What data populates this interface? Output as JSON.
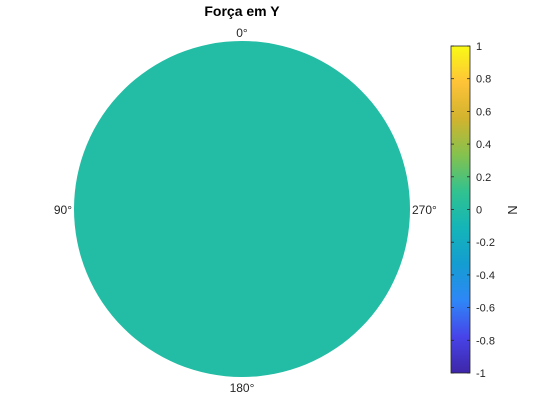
{
  "chart_data": {
    "type": "heatmap",
    "subtype": "polar-disk",
    "title": "Força em Y",
    "angle_labels": {
      "top": "0°",
      "left": "90°",
      "bottom": "180°",
      "right": "270°"
    },
    "value": 0,
    "colorbar": {
      "label": "N",
      "min": -1,
      "max": 1,
      "ticks": [
        1,
        0.8,
        0.6,
        0.4,
        0.2,
        0,
        -0.2,
        -0.4,
        -0.6,
        -0.8,
        -1
      ],
      "tick_labels": [
        "1",
        "0.8",
        "0.6",
        "0.4",
        "0.2",
        "0",
        "-0.2",
        "-0.4",
        "-0.6",
        "-0.8",
        "-1"
      ],
      "colormap": "parula",
      "stops": [
        "#3e26a8",
        "#4744e9",
        "#2e87f7",
        "#149dd1",
        "#14b5b8",
        "#31c28f",
        "#84c24e",
        "#d2b32e",
        "#fec338",
        "#f9fb15"
      ]
    },
    "grid": false
  }
}
